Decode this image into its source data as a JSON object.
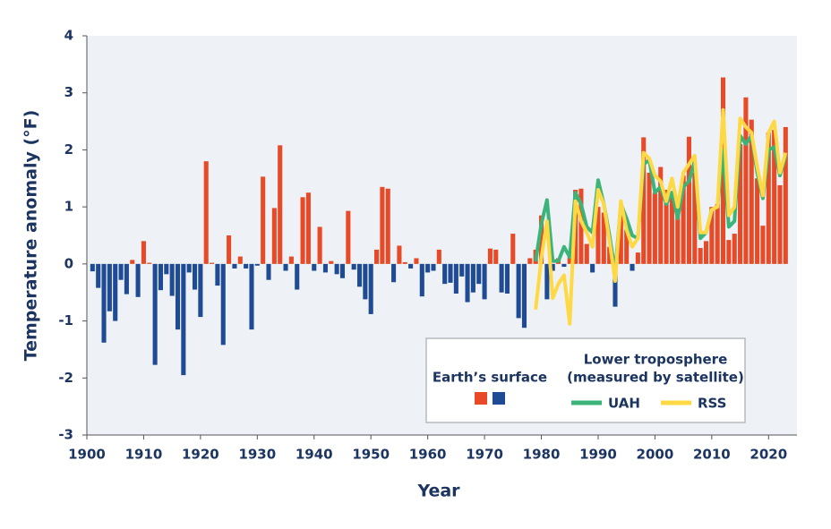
{
  "chart_data": {
    "type": "bar",
    "x_label": "Year",
    "y_label": "Temperature anomaly (°F)",
    "xlim": [
      1900,
      2025
    ],
    "xticks": [
      1900,
      1910,
      1920,
      1930,
      1940,
      1950,
      1960,
      1970,
      1980,
      1990,
      2000,
      2010,
      2020
    ],
    "ylim": [
      -3,
      4
    ],
    "yticks": [
      -3,
      -2,
      -1,
      0,
      1,
      2,
      3,
      4
    ],
    "grid": false,
    "legend_title_lines": [
      "Lower troposphere",
      "(measured by satellite)"
    ],
    "series": [
      {
        "name": "Earth’s surface",
        "type": "bar",
        "positive_color": "#e84a27",
        "negative_color": "#1f4a94",
        "x": [
          1901,
          1902,
          1903,
          1904,
          1905,
          1906,
          1907,
          1908,
          1909,
          1910,
          1911,
          1912,
          1913,
          1914,
          1915,
          1916,
          1917,
          1918,
          1919,
          1920,
          1921,
          1922,
          1923,
          1924,
          1925,
          1926,
          1927,
          1928,
          1929,
          1930,
          1931,
          1932,
          1933,
          1934,
          1935,
          1936,
          1937,
          1938,
          1939,
          1940,
          1941,
          1942,
          1943,
          1944,
          1945,
          1946,
          1947,
          1948,
          1949,
          1950,
          1951,
          1952,
          1953,
          1954,
          1955,
          1956,
          1957,
          1958,
          1959,
          1960,
          1961,
          1962,
          1963,
          1964,
          1965,
          1966,
          1967,
          1968,
          1969,
          1970,
          1971,
          1972,
          1973,
          1974,
          1975,
          1976,
          1977,
          1978,
          1979,
          1980,
          1981,
          1982,
          1983,
          1984,
          1985,
          1986,
          1987,
          1988,
          1989,
          1990,
          1991,
          1992,
          1993,
          1994,
          1995,
          1996,
          1997,
          1998,
          1999,
          2000,
          2001,
          2002,
          2003,
          2004,
          2005,
          2006,
          2007,
          2008,
          2009,
          2010,
          2011,
          2012,
          2013,
          2014,
          2015,
          2016,
          2017,
          2018,
          2019,
          2020,
          2021,
          2022,
          2023
        ],
        "values": [
          -0.13,
          -0.42,
          -1.38,
          -0.83,
          -1.0,
          -0.28,
          -0.53,
          0.07,
          -0.58,
          0.4,
          0.02,
          -1.77,
          -0.46,
          -0.18,
          -0.56,
          -1.15,
          -1.95,
          -0.15,
          -0.45,
          -0.93,
          1.8,
          0.02,
          -0.38,
          -1.42,
          0.5,
          -0.08,
          0.13,
          -0.08,
          -1.15,
          -0.03,
          1.53,
          -0.28,
          0.98,
          2.08,
          -0.12,
          0.13,
          -0.45,
          1.17,
          1.25,
          -0.12,
          0.65,
          -0.15,
          0.05,
          -0.18,
          -0.25,
          0.93,
          -0.1,
          -0.4,
          -0.62,
          -0.88,
          0.25,
          1.35,
          1.32,
          -0.32,
          0.32,
          0.03,
          -0.08,
          0.1,
          -0.57,
          -0.15,
          -0.12,
          0.25,
          -0.35,
          -0.33,
          -0.52,
          -0.22,
          -0.67,
          -0.5,
          -0.35,
          -0.62,
          0.27,
          0.25,
          -0.5,
          -0.52,
          0.53,
          -0.95,
          -1.12,
          0.1,
          0.25,
          0.85,
          -0.62,
          -0.12,
          0.1,
          -0.05,
          0.12,
          1.3,
          1.32,
          0.35,
          -0.15,
          1.0,
          0.9,
          0.3,
          -0.75,
          0.9,
          0.6,
          -0.12,
          0.2,
          2.22,
          1.6,
          1.25,
          1.7,
          1.3,
          1.25,
          0.9,
          1.55,
          2.23,
          1.6,
          0.28,
          0.4,
          1.0,
          1.05,
          3.27,
          0.42,
          0.53,
          2.1,
          2.92,
          2.53,
          1.5,
          0.67,
          2.3,
          2.35,
          1.38,
          2.4
        ]
      },
      {
        "name": "UAH",
        "type": "line",
        "color": "#3bb47a",
        "x": [
          1979,
          1980,
          1981,
          1982,
          1983,
          1984,
          1985,
          1986,
          1987,
          1988,
          1989,
          1990,
          1991,
          1992,
          1993,
          1994,
          1995,
          1996,
          1997,
          1998,
          1999,
          2000,
          2001,
          2002,
          2003,
          2004,
          2005,
          2006,
          2007,
          2008,
          2009,
          2010,
          2011,
          2012,
          2013,
          2014,
          2015,
          2016,
          2017,
          2018,
          2019,
          2020,
          2021,
          2022,
          2023
        ],
        "values": [
          0.05,
          0.7,
          1.12,
          0.05,
          0.05,
          0.3,
          0.12,
          1.25,
          1.05,
          0.65,
          0.55,
          1.47,
          1.05,
          0.5,
          -0.15,
          1.05,
          0.8,
          0.5,
          0.45,
          1.75,
          1.82,
          1.25,
          1.35,
          1.05,
          1.25,
          0.8,
          1.35,
          1.45,
          1.8,
          0.45,
          0.55,
          0.95,
          1.0,
          2.0,
          0.65,
          0.75,
          2.25,
          2.1,
          2.25,
          1.6,
          1.15,
          2.0,
          2.05,
          1.55,
          1.9
        ]
      },
      {
        "name": "RSS",
        "type": "line",
        "color": "#ffd944",
        "x": [
          1979,
          1980,
          1981,
          1982,
          1983,
          1984,
          1985,
          1986,
          1987,
          1988,
          1989,
          1990,
          1991,
          1992,
          1993,
          1994,
          1995,
          1996,
          1997,
          1998,
          1999,
          2000,
          2001,
          2002,
          2003,
          2004,
          2005,
          2006,
          2007,
          2008,
          2009,
          2010,
          2011,
          2012,
          2013,
          2014,
          2015,
          2016,
          2017,
          2018,
          2019,
          2020,
          2021,
          2022,
          2023
        ],
        "values": [
          -0.8,
          0.1,
          0.75,
          -0.6,
          -0.35,
          -0.2,
          -1.05,
          1.1,
          0.75,
          0.55,
          0.3,
          1.3,
          1.05,
          0.4,
          -0.3,
          1.1,
          0.6,
          0.3,
          0.45,
          1.95,
          1.85,
          1.55,
          1.45,
          1.1,
          1.5,
          1.0,
          1.6,
          1.75,
          1.9,
          0.55,
          0.55,
          0.95,
          1.0,
          2.7,
          0.85,
          1.0,
          2.55,
          2.4,
          2.3,
          1.7,
          1.2,
          2.3,
          2.5,
          1.6,
          1.95
        ]
      }
    ]
  }
}
